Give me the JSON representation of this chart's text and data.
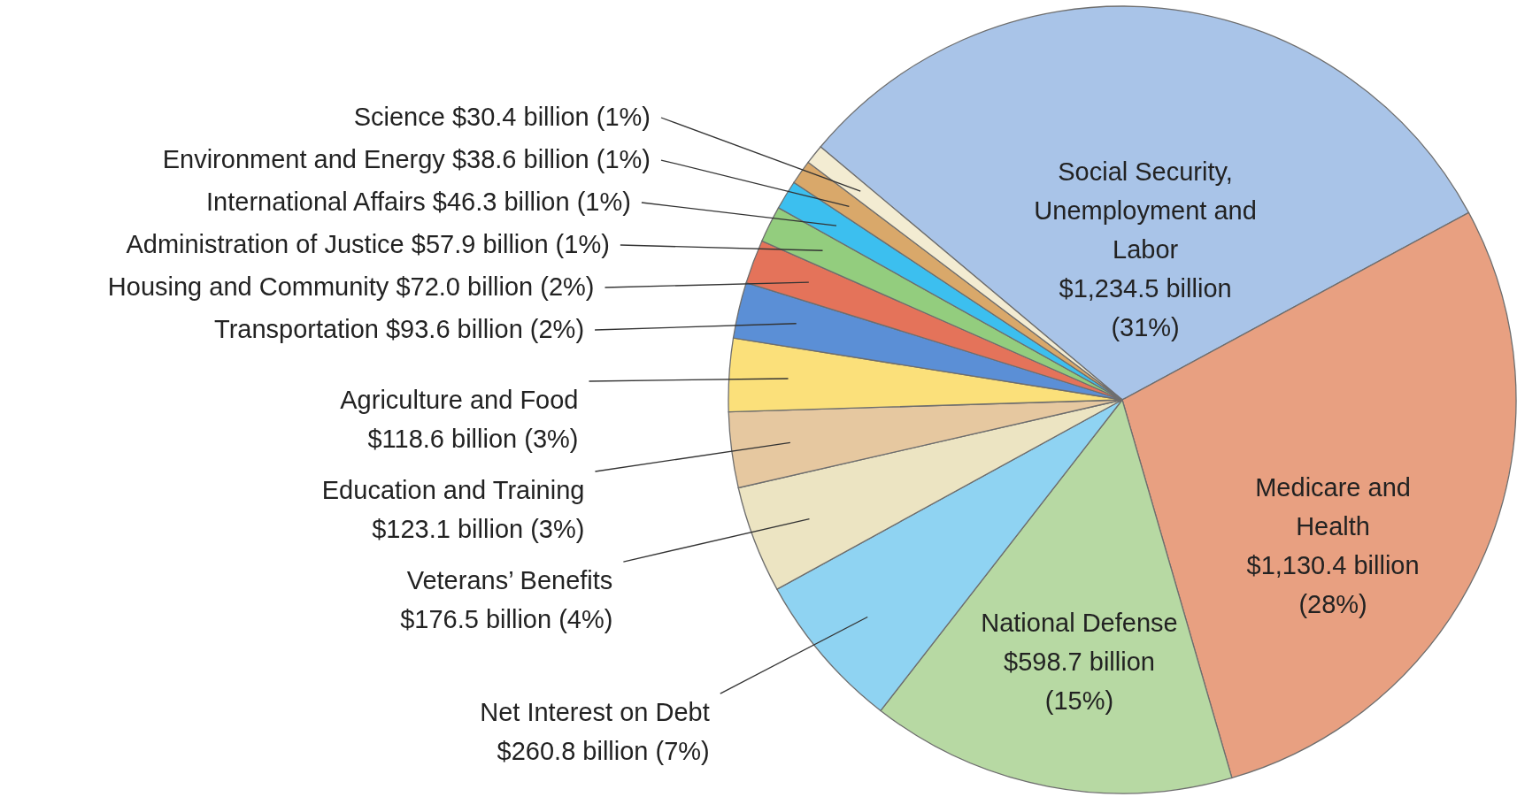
{
  "chart_data": {
    "type": "pie",
    "categories": [
      "Social Security, Unemployment and Labor",
      "Medicare and Health",
      "National Defense",
      "Net Interest on Debt",
      "Veterans’ Benefits",
      "Education and Training",
      "Agriculture and Food",
      "Transportation",
      "Housing and Community",
      "Administration of Justice",
      "International Affairs",
      "Environment and Energy",
      "Science"
    ],
    "values": [
      31.0,
      28.4,
      15.0,
      6.5,
      4.4,
      3.1,
      3.0,
      2.3,
      1.8,
      1.5,
      1.2,
      1.0,
      0.8
    ],
    "value_labels": [
      "$1,234.5 billion (31%)",
      "$1,130.4 billion (28%)",
      "$598.7 billion (15%)",
      "$260.8 billion (7%)",
      "$176.5 billion (4%)",
      "$123.1 billion (3%)",
      "$118.6 billion (3%)",
      "$93.6 billion (2%)",
      "$72.0 billion (2%)",
      "$57.9 billion (1%)",
      "$46.3 billion (1%)",
      "$38.6 billion (1%)",
      "$30.4 billion (1%)"
    ],
    "colors": [
      "#a9c4e8",
      "#e8a081",
      "#b7d9a3",
      "#8fd3f2",
      "#ece4c2",
      "#e6c8a0",
      "#fbe07a",
      "#5b8fd6",
      "#e4735a",
      "#93cd7e",
      "#3cbfef",
      "#d9a86a",
      "#f3ecd2"
    ]
  }
}
